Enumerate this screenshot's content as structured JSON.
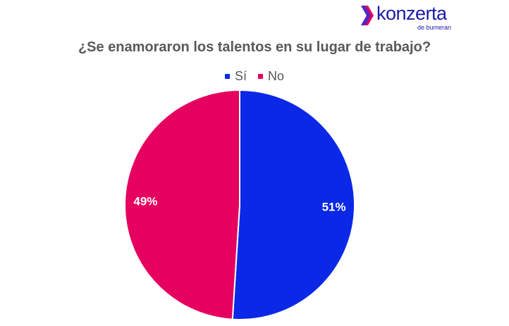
{
  "logo": {
    "brand": "konzerta",
    "sub": "de bumeran"
  },
  "chart_data": {
    "type": "pie",
    "title": "¿Se enamoraron los talentos en su lugar de trabajo?",
    "legend_position": "top",
    "slices": [
      {
        "label": "Sí",
        "value": 51,
        "display": "51%",
        "color": "#0a28e6"
      },
      {
        "label": "No",
        "value": 49,
        "display": "49%",
        "color": "#e6005f"
      }
    ]
  }
}
